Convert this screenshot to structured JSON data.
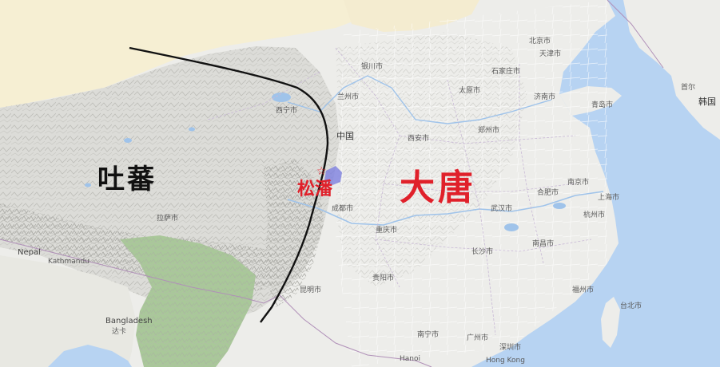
{
  "map": {
    "regions": {
      "tubo": "吐蕃",
      "datang": "大唐"
    },
    "marker": {
      "city_label": "松潘",
      "icon": "star-icon"
    },
    "basemap_labels": {
      "china": "中国",
      "nepal": "Nepal",
      "kathmandu": "Kathmandu",
      "bangladesh": "Bangladesh",
      "hanoi": "Hanoi",
      "hong_kong": "Hong Kong",
      "beijing": "北京市",
      "tianjin": "天津市",
      "shanghai": "上海市",
      "chongqing": "重庆市",
      "chengdu": "成都市",
      "wuhan": "武汉市",
      "xian": "西安市",
      "lanzhou": "兰州市",
      "xining": "西宁市",
      "guangzhou": "广州市",
      "hangzhou": "杭州市",
      "nanjing": "南京市",
      "zhengzhou": "郑州市",
      "kunming": "昆明市",
      "guiyang": "贵阳市",
      "changsha": "长沙市",
      "nanchang": "南昌市",
      "fuzhou": "福州市",
      "taibei": "台北市",
      "hefei": "合肥市",
      "jinan": "济南市",
      "qingdao": "青岛市",
      "shijiazhuang": "石家庄市",
      "taiyuan": "太原市",
      "yinchuan": "银川市",
      "nanning": "南宁市",
      "shenzhen": "深圳市",
      "seoul": "首尔",
      "korea": "韩国",
      "lhasa": "拉萨市",
      "dhaka": "达卡"
    },
    "colors": {
      "sea": "#b7d3f2",
      "land": "#ededea",
      "desert": "#f6efd3",
      "plateau": "#d9d9d6",
      "forest": "#aac99a",
      "boundary_line": "#111111",
      "tubo_text": "#111111",
      "datang_text": "#e0202a",
      "marker": "#e0202a",
      "marker_highlight": "#7d7fe0"
    }
  }
}
